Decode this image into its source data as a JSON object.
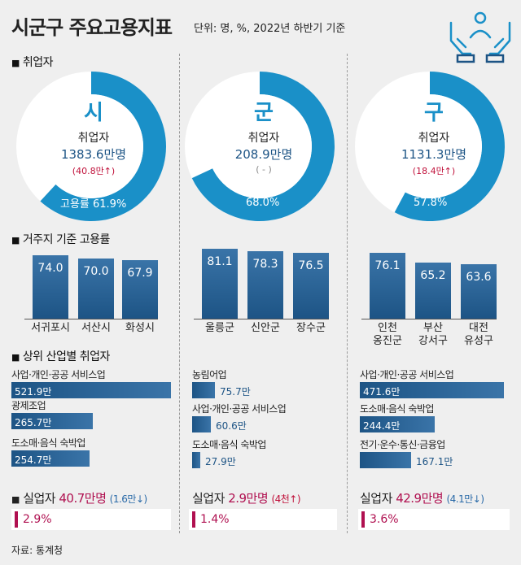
{
  "header": {
    "title": "시군구 주요고용지표",
    "unit": "단위: 명, %, 2022년 하반기 기준",
    "icon": "handshake-people-icon"
  },
  "sections": {
    "employed": "취업자",
    "residence_rate": "거주지 기준 고용률",
    "industry": "상위 산업별 취업자"
  },
  "colors": {
    "blue": "#1a90c8",
    "bar": "#1d5485",
    "red": "#b01050"
  },
  "chart_data": [
    {
      "type": "pie",
      "title": "취업자",
      "series": [
        {
          "name": "시",
          "label": "취업자",
          "employed": "1383.6만명",
          "change": "(40.8만↑)",
          "rate_label": "고용률 61.9%",
          "rate": 61.9
        },
        {
          "name": "군",
          "label": "취업자",
          "employed": "208.9만명",
          "change": "( - )",
          "rate_label": "68.0%",
          "rate": 68.0
        },
        {
          "name": "구",
          "label": "취업자",
          "employed": "1131.3만명",
          "change": "(18.4만↑)",
          "rate_label": "57.8%",
          "rate": 57.8
        }
      ]
    },
    {
      "type": "bar",
      "title": "거주지 기준 고용률",
      "groups": [
        {
          "name": "시",
          "categories": [
            "서귀포시",
            "서산시",
            "화성시"
          ],
          "values": [
            74.0,
            70.0,
            67.9
          ],
          "labels": [
            "74.0",
            "70.0",
            "67.9"
          ]
        },
        {
          "name": "군",
          "categories": [
            "울릉군",
            "신안군",
            "장수군"
          ],
          "values": [
            81.1,
            78.3,
            76.5
          ],
          "labels": [
            "81.1",
            "78.3",
            "76.5"
          ]
        },
        {
          "name": "구",
          "categories": [
            "인천 옹진군",
            "부산 강서구",
            "대전 유성구"
          ],
          "values": [
            76.1,
            65.2,
            63.6
          ],
          "labels": [
            "76.1",
            "65.2",
            "63.6"
          ]
        }
      ]
    },
    {
      "type": "bar",
      "title": "상위 산업별 취업자",
      "groups": [
        {
          "name": "시",
          "categories": [
            "사업·개인·공공 서비스업",
            "광제조업",
            "도소매·음식 숙박업"
          ],
          "values": [
            521.9,
            265.7,
            254.7
          ],
          "labels": [
            "521.9만",
            "265.7만",
            "254.7만"
          ]
        },
        {
          "name": "군",
          "categories": [
            "농림어업",
            "사업·개인·공공 서비스업",
            "도소매·음식 숙박업"
          ],
          "values": [
            75.7,
            60.6,
            27.9
          ],
          "labels": [
            "75.7만",
            "60.6만",
            "27.9만"
          ]
        },
        {
          "name": "구",
          "categories": [
            "사업·개인·공공 서비스업",
            "도소매·음식 숙박업",
            "전기·운수·통신·금융업"
          ],
          "values": [
            471.6,
            244.4,
            167.1
          ],
          "labels": [
            "471.6만",
            "244.4만",
            "167.1만"
          ]
        }
      ]
    }
  ],
  "unemployment": [
    {
      "prefix": "실업자",
      "count": "40.7만명",
      "change": "(1.6만↓)",
      "rate": "2.9%"
    },
    {
      "prefix": "실업자",
      "count": "2.9만명",
      "change": "(4천↑)",
      "rate": "1.4%"
    },
    {
      "prefix": "실업자",
      "count": "42.9만명",
      "change": "(4.1만↓)",
      "rate": "3.6%"
    }
  ],
  "source": "자료: 통계청"
}
